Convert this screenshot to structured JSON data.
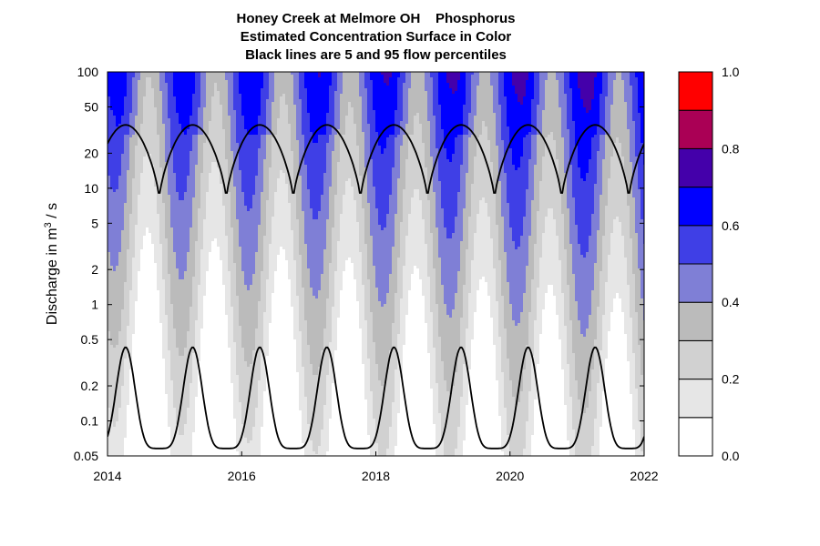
{
  "chart_data": {
    "type": "heatmap",
    "title": "Honey Creek at Melmore OH    Phosphorus",
    "subtitle_lines": [
      "Estimated Concentration Surface in Color",
      "Black lines are 5 and 95 flow percentiles"
    ],
    "ylabel_prefix": "Discharge in m",
    "ylabel_sup": "3",
    "ylabel_suffix": " / s",
    "y_scale": "log",
    "xlim": [
      2014,
      2022
    ],
    "ylim": [
      0.05,
      100
    ],
    "x_ticks": [
      2014,
      2016,
      2018,
      2020,
      2022
    ],
    "x_tick_labels": [
      "2014",
      "2016",
      "2018",
      "2020",
      "2022"
    ],
    "y_ticks": [
      0.05,
      0.1,
      0.2,
      0.5,
      1,
      2,
      5,
      10,
      20,
      50,
      100
    ],
    "y_tick_labels": [
      "0.05",
      "0.1",
      "0.2",
      "0.5",
      "1",
      "2",
      "5",
      "10",
      "20",
      "50",
      "100"
    ],
    "colorbar": {
      "levels": [
        0.0,
        0.1,
        0.2,
        0.3,
        0.4,
        0.5,
        0.6,
        0.7,
        0.8,
        0.9,
        1.0
      ],
      "colors": [
        "#ffffff",
        "#e6e6e6",
        "#d1d1d1",
        "#bbbbbb",
        "#7f7fd6",
        "#3f3fe6",
        "#0000ff",
        "#4400aa",
        "#aa0055",
        "#ff0000"
      ],
      "tick_values": [
        0.0,
        0.2,
        0.4,
        0.6,
        0.8,
        1.0
      ],
      "tick_labels": [
        "0.0",
        "0.2",
        "0.4",
        "0.6",
        "0.8",
        "1.0"
      ]
    },
    "flow_percentile_95": {
      "annual_peak": 35,
      "annual_trough": 8,
      "x": [
        2014.0,
        2014.5,
        2014.7,
        2015.0,
        2015.3,
        2015.5,
        2015.7,
        2016.0
      ],
      "y": [
        22,
        34,
        8,
        22,
        35,
        33,
        8,
        22
      ]
    },
    "flow_percentile_5": {
      "annual_peak": 0.43,
      "annual_trough": 0.058,
      "x": [
        2014.0,
        2014.3,
        2014.6,
        2014.8,
        2015.0,
        2015.3,
        2015.6,
        2015.8
      ],
      "y": [
        0.12,
        0.43,
        0.06,
        0.06,
        0.12,
        0.43,
        0.06,
        0.06
      ]
    }
  }
}
